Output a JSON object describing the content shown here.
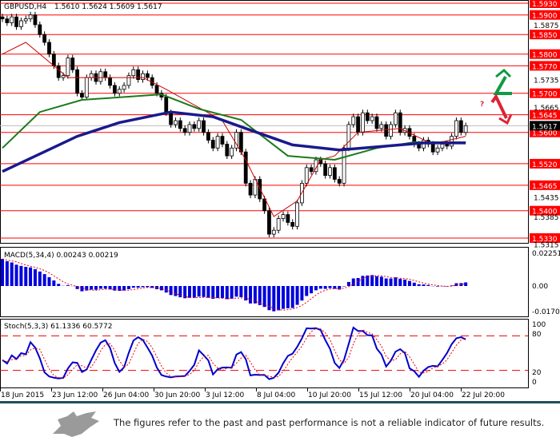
{
  "header": {
    "symbol": "GBPUSD,H4",
    "ohlc": "1.5610 1.5624 1.5609 1.5617"
  },
  "price_axis": {
    "levels": [
      "1.5930",
      "1.5900",
      "1.5850",
      "1.5800",
      "1.5770",
      "1.5700",
      "1.5645",
      "1.5600",
      "1.5520",
      "1.5465",
      "1.5400",
      "1.5330"
    ],
    "ticks": [
      "1.5875",
      "1.5735",
      "1.5665",
      "1.5435",
      "1.5385",
      "1.5315"
    ],
    "current": "1.5617"
  },
  "macd": {
    "label": "MACD(5,34,4) 0.00243 0.00219",
    "max": "0.02251",
    "zero": "0.00",
    "min": "-0.01708"
  },
  "stoch": {
    "label": "Stoch(5,3,3) 61.1336 60.5772",
    "ticks": [
      "100",
      "80",
      "20",
      "0"
    ]
  },
  "dates": [
    "18 Jun 2015",
    "23 Jun 12:00",
    "26 Jun 04:00",
    "30 Jun 20:00",
    "3 Jul 12:00",
    "8 Jul 04:00",
    "10 Jul 20:00",
    "15 Jul 12:00",
    "20 Jul 04:00",
    "22 Jul 20:00"
  ],
  "footer": {
    "disclaimer": "The figures refer to the past and past performance is not a reliable indicator of future results."
  },
  "colors": {
    "level": "#ff0000",
    "ma_fast": "#cc0000",
    "ma_mid": "#1a7a1a",
    "ma_slow": "#1a1a8c",
    "macd_hist": "#0000dd",
    "arrow_up": "#119944",
    "arrow_down": "#dd2233"
  },
  "chart_data": {
    "type": "candlestick",
    "closes": [
      1.589,
      1.588,
      1.5895,
      1.587,
      1.5885,
      1.589,
      1.59,
      1.5875,
      1.585,
      1.583,
      1.58,
      1.577,
      1.574,
      1.5745,
      1.579,
      1.576,
      1.57,
      1.569,
      1.574,
      1.575,
      1.573,
      1.5755,
      1.574,
      1.572,
      1.57,
      1.571,
      1.572,
      1.5745,
      1.576,
      1.5735,
      1.575,
      1.574,
      1.572,
      1.57,
      1.569,
      1.565,
      1.562,
      1.563,
      1.561,
      1.56,
      1.562,
      1.561,
      1.563,
      1.56,
      1.558,
      1.556,
      1.559,
      1.557,
      1.554,
      1.556,
      1.56,
      1.555,
      1.547,
      1.544,
      1.548,
      1.543,
      1.54,
      1.534,
      1.535,
      1.538,
      1.539,
      1.537,
      1.536,
      1.542,
      1.547,
      1.551,
      1.55,
      1.553,
      1.552,
      1.549,
      1.551,
      1.548,
      1.547,
      1.556,
      1.562,
      1.564,
      1.56,
      1.565,
      1.563,
      1.564,
      1.561,
      1.562,
      1.559,
      1.562,
      1.565,
      1.56,
      1.561,
      1.559,
      1.557,
      1.556,
      1.558,
      1.557,
      1.555,
      1.556,
      1.557,
      1.5565,
      1.559,
      1.563,
      1.56,
      1.5617
    ],
    "ma_slow": [
      [
        0,
        1.55
      ],
      [
        8,
        1.5545
      ],
      [
        16,
        1.559
      ],
      [
        25,
        1.5625
      ],
      [
        36,
        1.5652
      ],
      [
        45,
        1.564
      ],
      [
        52,
        1.561
      ],
      [
        62,
        1.5568
      ],
      [
        72,
        1.5555
      ],
      [
        82,
        1.5565
      ],
      [
        90,
        1.5573
      ],
      [
        99,
        1.5573
      ]
    ],
    "ma_mid": [
      [
        0,
        1.556
      ],
      [
        8,
        1.5652
      ],
      [
        17,
        1.5683
      ],
      [
        34,
        1.5697
      ],
      [
        42,
        1.566
      ],
      [
        51,
        1.5632
      ],
      [
        61,
        1.554
      ],
      [
        71,
        1.553
      ],
      [
        80,
        1.556
      ],
      [
        88,
        1.5575
      ],
      [
        99,
        1.5575
      ]
    ],
    "ma_fast": [
      [
        0,
        1.58
      ],
      [
        5,
        1.583
      ],
      [
        10,
        1.578
      ],
      [
        14,
        1.574
      ],
      [
        30,
        1.574
      ],
      [
        35,
        1.571
      ],
      [
        47,
        1.563
      ],
      [
        52,
        1.553
      ],
      [
        58,
        1.5385
      ],
      [
        63,
        1.5425
      ],
      [
        68,
        1.553
      ],
      [
        71,
        1.554
      ],
      [
        76,
        1.56
      ],
      [
        85,
        1.561
      ],
      [
        92,
        1.557
      ],
      [
        99,
        1.559
      ]
    ],
    "ylim": [
      1.5315,
      1.594
    ]
  }
}
